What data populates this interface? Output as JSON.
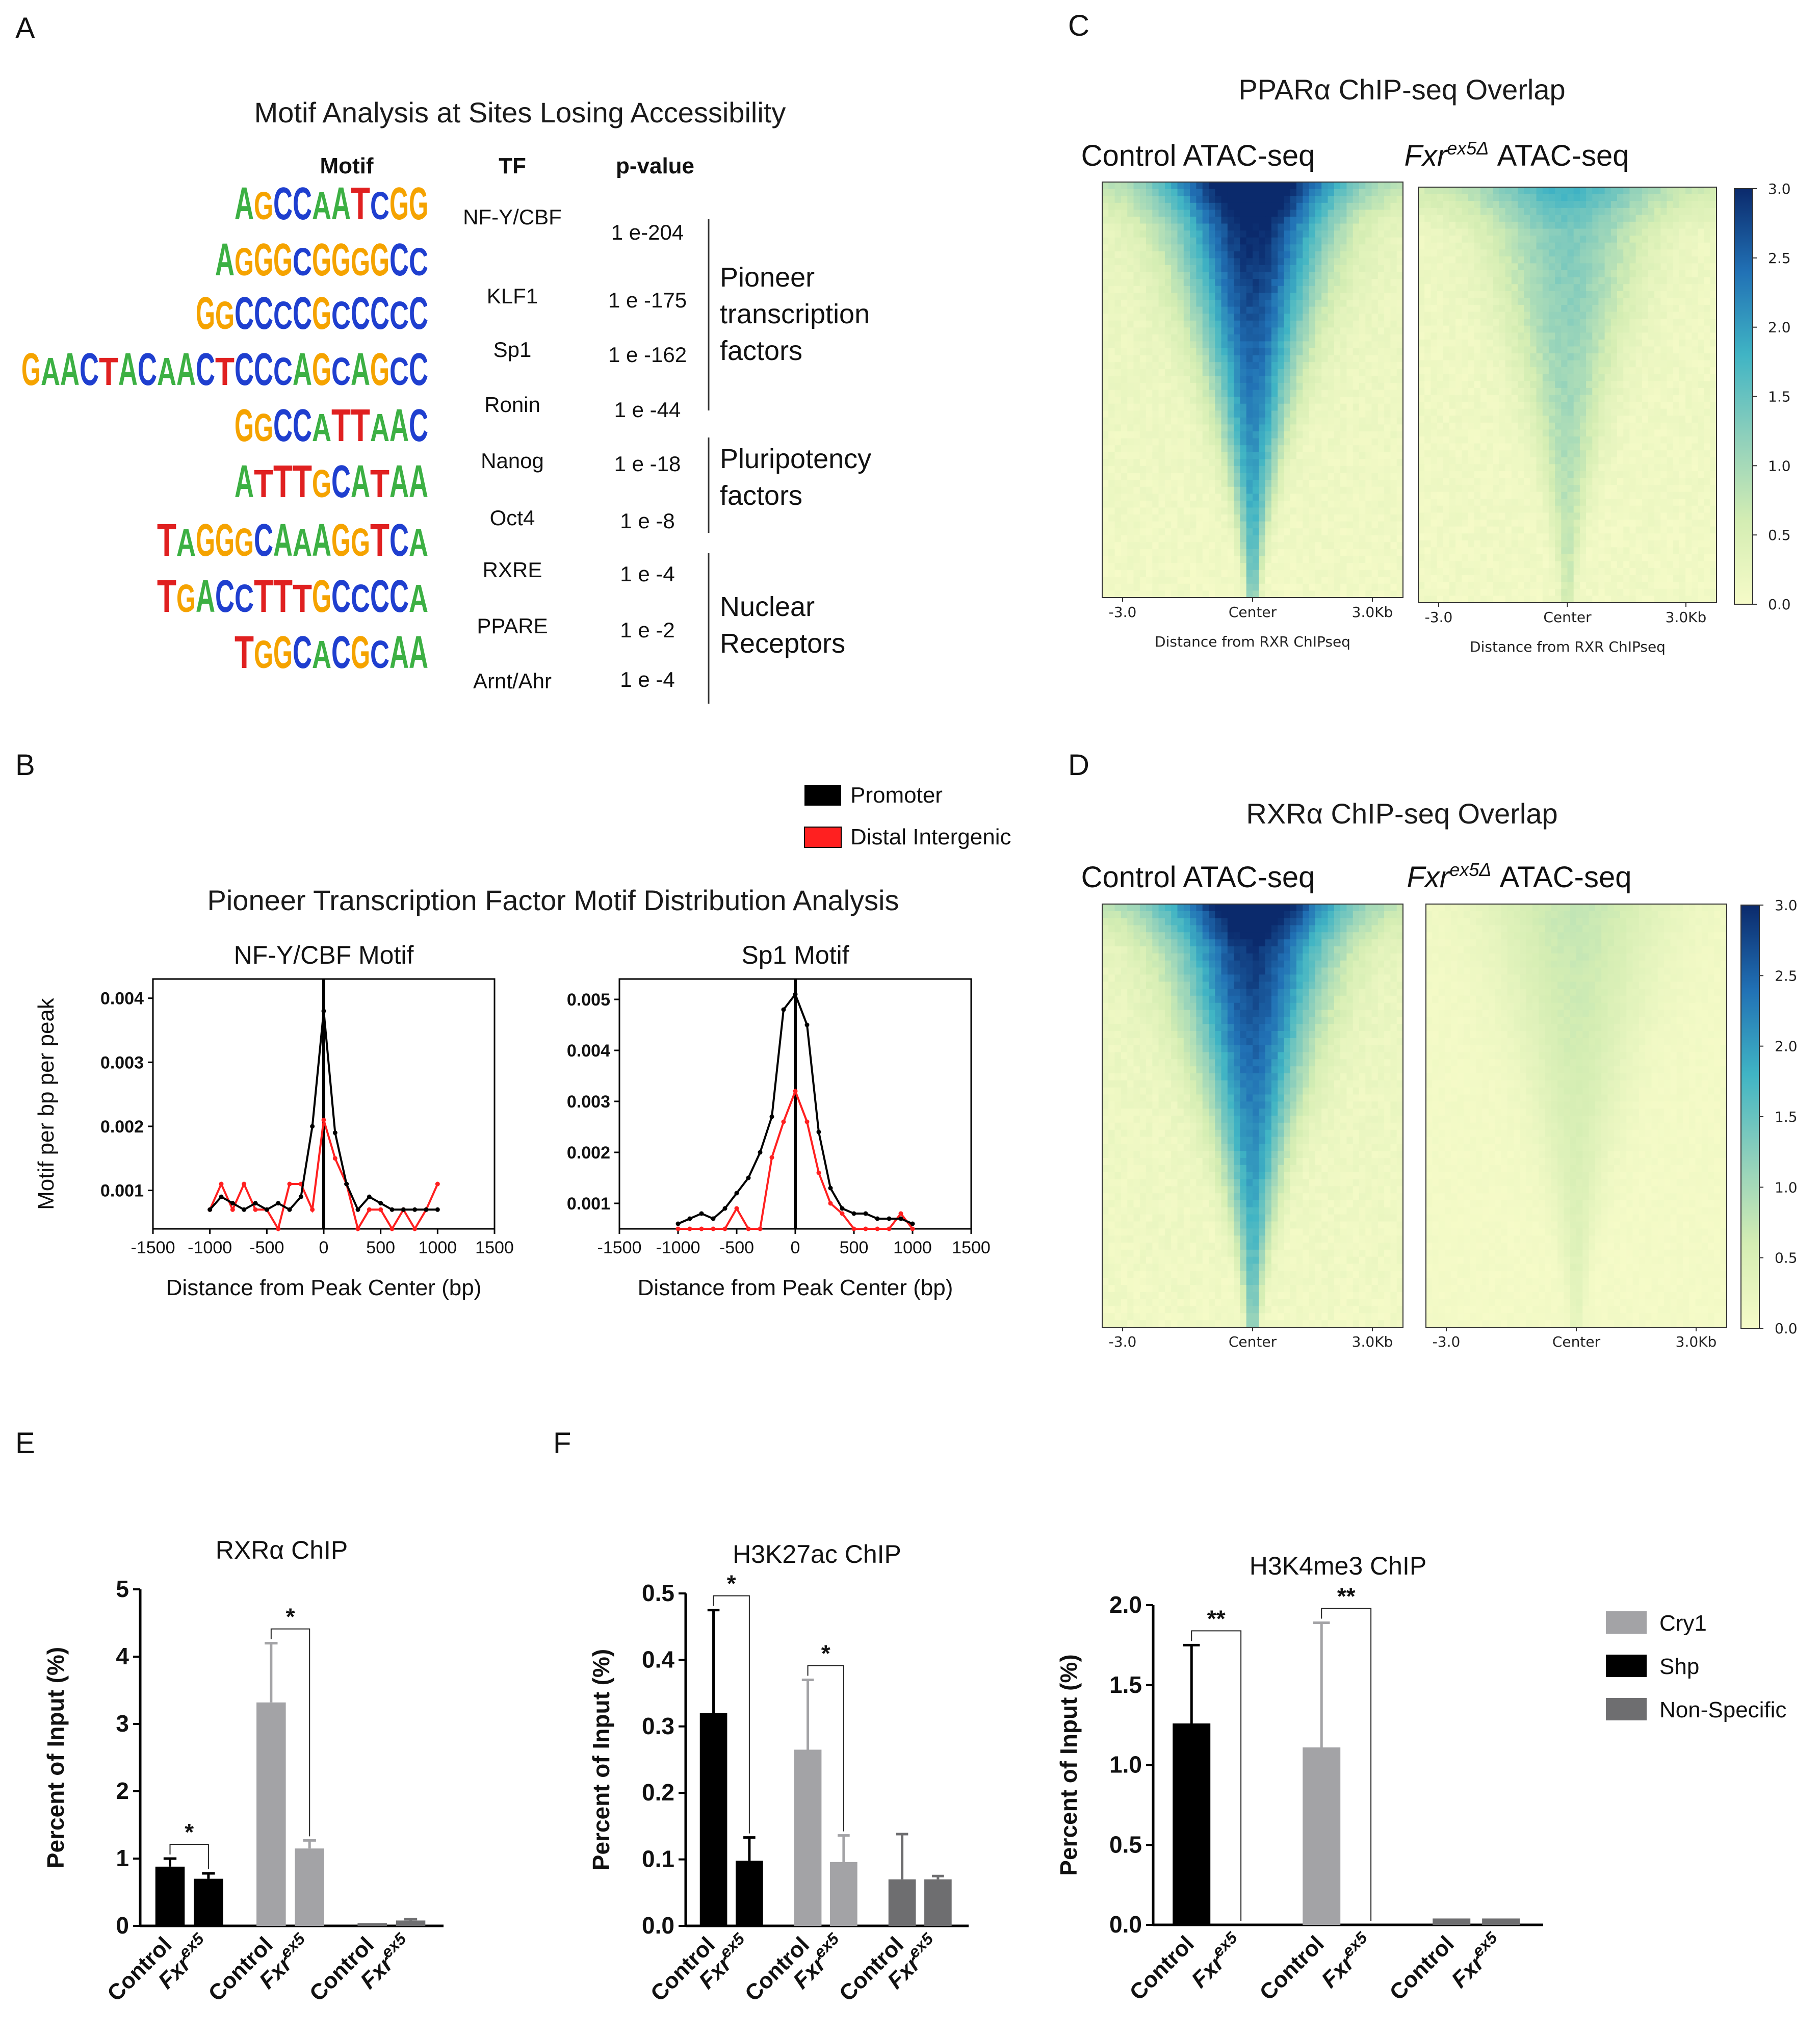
{
  "panels": {
    "A": "A",
    "B": "B",
    "C": "C",
    "D": "D",
    "E": "E",
    "F": "F"
  },
  "panelA": {
    "title": "Motif Analysis at Sites Losing Accessibility",
    "headers": {
      "motif": "Motif",
      "tf": "TF",
      "pvalue": "p-value"
    },
    "rows": [
      {
        "motif": "AGCCAATCGG",
        "tf": "NF-Y/CBF",
        "p": "1 e-204"
      },
      {
        "motif": "AGGGCGGGGCC",
        "tf": "KLF1",
        "p": "1 e -175"
      },
      {
        "motif": "GGCCCCGCCCCC",
        "tf": "Sp1",
        "p": "1 e -162"
      },
      {
        "motif": "GAACTACAACTCCCAGCAGCC",
        "tf": "Ronin",
        "p": "1 e -44"
      },
      {
        "motif": "GGCCATTAAC",
        "tf": "Nanog",
        "p": "1 e -18"
      },
      {
        "motif": "ATTTGCATAA",
        "tf": "Oct4",
        "p": "1 e -8"
      },
      {
        "motif": "TAGGGCAAAGGTCA",
        "tf": "RXRE",
        "p": "1 e -4"
      },
      {
        "motif": "TGACCTTTGCCCCA",
        "tf": "PPARE",
        "p": "1 e -2"
      },
      {
        "motif": "TGGCACGCAA",
        "tf": "Arnt/Ahr",
        "p": "1 e -4"
      }
    ],
    "groups": [
      {
        "lines": [
          "Pioneer",
          "transcription",
          "factors"
        ]
      },
      {
        "lines": [
          "Pluripotency",
          "factors"
        ]
      },
      {
        "lines": [
          "Nuclear",
          "Receptors"
        ]
      }
    ],
    "base_colors": {
      "A": "#3cb043",
      "C": "#1f3fcf",
      "G": "#f5a300",
      "T": "#e02020"
    }
  },
  "panelB": {
    "title": "Pioneer Transcription Factor Motif Distribution Analysis",
    "legend": [
      {
        "label": "Promoter",
        "color": "#000000"
      },
      {
        "label": "Distal Intergenic",
        "color": "#ff2020"
      }
    ],
    "ylabel": "Motif per bp per peak",
    "xlabel": "Distance from Peak Center (bp)"
  },
  "panelC": {
    "title": "PPARα ChIP-seq Overlap",
    "left_head": "Control ATAC-seq",
    "right_gene": "Fxr",
    "right_sup": "ex5Δ",
    "right_rest": " ATAC-seq",
    "xlabel": "Distance from RXR ChIPseq"
  },
  "panelD": {
    "title": "RXRα ChIP-seq Overlap",
    "left_head": "Control ATAC-seq",
    "right_gene": "Fxr",
    "right_sup": "ex5Δ",
    "right_rest": " ATAC-seq"
  },
  "heatmap_ticks": [
    "-3.0",
    "Center",
    "3.0Kb"
  ],
  "colorbar_ticks": [
    "3.0",
    "2.5",
    "2.0",
    "1.5",
    "1.0",
    "0.5",
    "0.0"
  ],
  "panelE": {
    "ylabel": "Percent of Input (%)"
  },
  "panelF": {
    "ylabel": "Percent of Input (%)"
  },
  "bar_legend": [
    {
      "label": "Cry1",
      "color": "#a3a3a6"
    },
    {
      "label": "Shp",
      "color": "#000000"
    },
    {
      "label": "Non-Specific",
      "color": "#6e6e70"
    }
  ],
  "x_categories": {
    "control": "Control",
    "gene": "Fxr",
    "sup": "ex5"
  },
  "chart_data": [
    {
      "type": "line",
      "title": "NF-Y/CBF Motif",
      "xlabel": "Distance from Peak Center (bp)",
      "ylabel": "Motif per bp per peak",
      "xlim": [
        -1500,
        1500
      ],
      "xticks": [
        -1500,
        -1000,
        -500,
        0,
        500,
        1000,
        1500
      ],
      "yticks": [
        0.001,
        0.002,
        0.003,
        0.004
      ],
      "ylim": [
        0.0004,
        0.0043
      ],
      "series": [
        {
          "name": "Promoter",
          "color": "#000000",
          "x": [
            -1000,
            -900,
            -800,
            -700,
            -600,
            -500,
            -400,
            -300,
            -200,
            -100,
            0,
            100,
            200,
            300,
            400,
            500,
            600,
            700,
            800,
            900,
            1000
          ],
          "values": [
            0.0007,
            0.0009,
            0.0008,
            0.0007,
            0.0008,
            0.0007,
            0.0008,
            0.0007,
            0.0009,
            0.002,
            0.0038,
            0.0019,
            0.0011,
            0.0007,
            0.0009,
            0.0008,
            0.0007,
            0.0007,
            0.0007,
            0.0007,
            0.0007
          ]
        },
        {
          "name": "Distal Intergenic",
          "color": "#ff2020",
          "x": [
            -1000,
            -900,
            -800,
            -700,
            -600,
            -500,
            -400,
            -300,
            -200,
            -100,
            0,
            100,
            200,
            300,
            400,
            500,
            600,
            700,
            800,
            900,
            1000
          ],
          "values": [
            0.0007,
            0.0011,
            0.0007,
            0.0011,
            0.0007,
            0.0007,
            0.0004,
            0.0011,
            0.0011,
            0.0007,
            0.0021,
            0.0015,
            0.0011,
            0.0004,
            0.0007,
            0.0007,
            0.0004,
            0.0007,
            0.0004,
            0.0007,
            0.0011
          ]
        }
      ]
    },
    {
      "type": "line",
      "title": "Sp1 Motif",
      "xlabel": "Distance from Peak Center (bp)",
      "ylabel": "",
      "xlim": [
        -1500,
        1500
      ],
      "xticks": [
        -1500,
        -1000,
        -500,
        0,
        500,
        1000,
        1500
      ],
      "yticks": [
        0.001,
        0.002,
        0.003,
        0.004,
        0.005
      ],
      "ylim": [
        0.0005,
        0.0054
      ],
      "series": [
        {
          "name": "Promoter",
          "color": "#000000",
          "x": [
            -1000,
            -900,
            -800,
            -700,
            -600,
            -500,
            -400,
            -300,
            -200,
            -100,
            0,
            100,
            200,
            300,
            400,
            500,
            600,
            700,
            800,
            900,
            1000
          ],
          "values": [
            0.0006,
            0.0007,
            0.0008,
            0.0007,
            0.0009,
            0.0012,
            0.0015,
            0.002,
            0.0027,
            0.0048,
            0.0051,
            0.0045,
            0.0024,
            0.0013,
            0.0009,
            0.0008,
            0.0008,
            0.0007,
            0.0007,
            0.0007,
            0.0006
          ]
        },
        {
          "name": "Distal Intergenic",
          "color": "#ff2020",
          "x": [
            -1000,
            -900,
            -800,
            -700,
            -600,
            -500,
            -400,
            -300,
            -200,
            -100,
            0,
            100,
            200,
            300,
            400,
            500,
            600,
            700,
            800,
            900,
            1000
          ],
          "values": [
            0.0005,
            0.0005,
            0.0005,
            0.0005,
            0.0005,
            0.0009,
            0.0005,
            0.0005,
            0.0019,
            0.0026,
            0.0032,
            0.0026,
            0.0016,
            0.001,
            0.0008,
            0.0005,
            0.0005,
            0.0005,
            0.0005,
            0.0008,
            0.0005
          ]
        }
      ]
    },
    {
      "type": "heatmap",
      "title": "PPARα ChIP-seq Overlap",
      "columns": [
        "Control ATAC-seq",
        "Fxr ex5Δ ATAC-seq"
      ],
      "colorbar_range": [
        0.0,
        3.0
      ],
      "xlabel": "Distance from RXR ChIPseq"
    },
    {
      "type": "heatmap",
      "title": "RXRα ChIP-seq Overlap",
      "columns": [
        "Control ATAC-seq",
        "Fxr ex5Δ ATAC-seq"
      ],
      "colorbar_range": [
        0.0,
        3.0
      ]
    },
    {
      "type": "bar",
      "title": "RXRα ChIP",
      "ylabel": "Percent of Input (%)",
      "ylim": [
        0,
        5
      ],
      "yticks": [
        0,
        1,
        2,
        3,
        4,
        5
      ],
      "groups": [
        {
          "gene": "Shp",
          "color": "#000000",
          "bars": [
            {
              "label": "Control",
              "value": 0.88,
              "err": 0.12
            },
            {
              "label": "Fxr ex5",
              "value": 0.7,
              "err": 0.08
            }
          ],
          "sig": "*"
        },
        {
          "gene": "Cry1",
          "color": "#a3a3a6",
          "bars": [
            {
              "label": "Control",
              "value": 3.32,
              "err": 0.88
            },
            {
              "label": "Fxr ex5",
              "value": 1.15,
              "err": 0.12
            }
          ],
          "sig": "*"
        },
        {
          "gene": "Non-Specific",
          "color": "#6e6e70",
          "bars": [
            {
              "label": "Control",
              "value": 0.04,
              "err": 0.0
            },
            {
              "label": "Fxr ex5",
              "value": 0.08,
              "err": 0.02
            }
          ],
          "sig": ""
        }
      ]
    },
    {
      "type": "bar",
      "title": "H3K27ac ChIP",
      "ylabel": "Percent of Input (%)",
      "ylim": [
        0,
        0.5
      ],
      "yticks": [
        0.0,
        0.1,
        0.2,
        0.3,
        0.4,
        0.5
      ],
      "groups": [
        {
          "gene": "Shp",
          "color": "#000000",
          "bars": [
            {
              "label": "Control",
              "value": 0.32,
              "err": 0.155
            },
            {
              "label": "Fxr ex5",
              "value": 0.098,
              "err": 0.035
            }
          ],
          "sig": "*"
        },
        {
          "gene": "Cry1",
          "color": "#a3a3a6",
          "bars": [
            {
              "label": "Control",
              "value": 0.265,
              "err": 0.105
            },
            {
              "label": "Fxr ex5",
              "value": 0.096,
              "err": 0.04
            }
          ],
          "sig": "*"
        },
        {
          "gene": "Non-Specific",
          "color": "#6e6e70",
          "bars": [
            {
              "label": "Control",
              "value": 0.07,
              "err": 0.068
            },
            {
              "label": "Fxr ex5",
              "value": 0.07,
              "err": 0.005
            }
          ],
          "sig": ""
        }
      ]
    },
    {
      "type": "bar",
      "title": "H3K4me3 ChIP",
      "ylabel": "Percent of Input (%)",
      "ylim": [
        0,
        2.0
      ],
      "yticks": [
        0.0,
        0.5,
        1.0,
        1.5,
        2.0
      ],
      "groups": [
        {
          "gene": "Shp",
          "color": "#000000",
          "bars": [
            {
              "label": "Control",
              "value": 1.26,
              "err": 0.49
            },
            {
              "label": "Fxr ex5",
              "value": 0.0,
              "err": 0.0
            }
          ],
          "sig": "**"
        },
        {
          "gene": "Cry1",
          "color": "#a3a3a6",
          "bars": [
            {
              "label": "Control",
              "value": 1.11,
              "err": 0.78
            },
            {
              "label": "Fxr ex5",
              "value": 0.0,
              "err": 0.0
            }
          ],
          "sig": "**"
        },
        {
          "gene": "Non-Specific",
          "color": "#6e6e70",
          "bars": [
            {
              "label": "Control",
              "value": 0.04,
              "err": 0.0
            },
            {
              "label": "Fxr ex5",
              "value": 0.04,
              "err": 0.0
            }
          ],
          "sig": ""
        }
      ]
    }
  ]
}
